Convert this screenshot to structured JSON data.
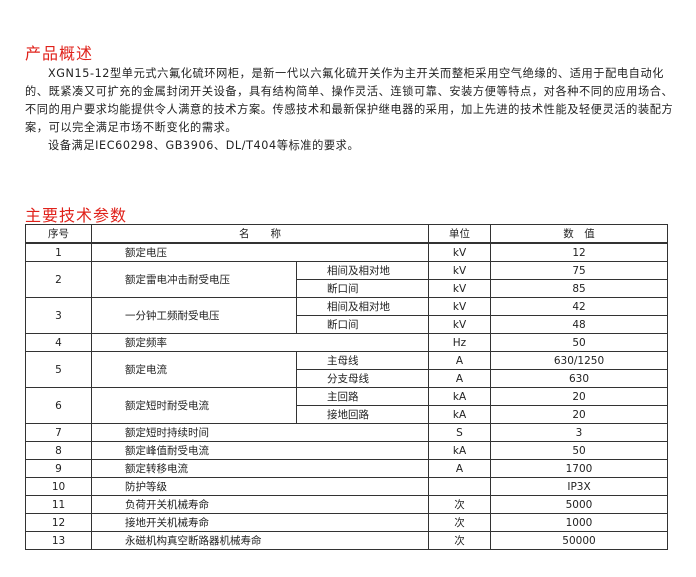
{
  "overview": {
    "title": "产品概述",
    "paragraph1": "XGN15-12型单元式六氟化硫环网柜，是新一代以六氟化硫开关作为主开关而整柜采用空气绝缘的、适用于配电自动化的、既紧凑又可扩充的金属封闭开关设备，具有结构简单、操作灵活、连锁可靠、安装方便等特点，对各种不同的应用场合、不同的用户要求均能提供令人满意的技术方案。传感技术和最新保护继电器的采用，加上先进的技术性能及轻便灵活的装配方案，可以完全满足市场不断变化的需求。",
    "paragraph2": "设备满足IEC60298、GB3906、DL/T404等标准的要求。"
  },
  "params": {
    "title": "主要技术参数",
    "headers": {
      "no": "序号",
      "name": "名　　称",
      "unit": "单位",
      "value": "数　值"
    },
    "rows": [
      {
        "no": "1",
        "name": "额定电压",
        "unit": "kV",
        "value": "12"
      },
      {
        "no": "2",
        "name": "额定雷电冲击耐受电压",
        "subs": [
          {
            "sub": "相间及相对地",
            "unit": "kV",
            "value": "75"
          },
          {
            "sub": "断口间",
            "unit": "kV",
            "value": "85"
          }
        ]
      },
      {
        "no": "3",
        "name": "一分钟工频耐受电压",
        "subs": [
          {
            "sub": "相间及相对地",
            "unit": "kV",
            "value": "42"
          },
          {
            "sub": "断口间",
            "unit": "kV",
            "value": "48"
          }
        ]
      },
      {
        "no": "4",
        "name": "额定频率",
        "unit": "Hz",
        "value": "50"
      },
      {
        "no": "5",
        "name": "额定电流",
        "subs": [
          {
            "sub": "主母线",
            "unit": "A",
            "value": "630/1250"
          },
          {
            "sub": "分支母线",
            "unit": "A",
            "value": "630"
          }
        ]
      },
      {
        "no": "6",
        "name": "额定短时耐受电流",
        "subs": [
          {
            "sub": "主回路",
            "unit": "kA",
            "value": "20"
          },
          {
            "sub": "接地回路",
            "unit": "kA",
            "value": "20"
          }
        ]
      },
      {
        "no": "7",
        "name": "额定短时持续时间",
        "unit": "S",
        "value": "3"
      },
      {
        "no": "8",
        "name": "额定峰值耐受电流",
        "unit": "kA",
        "value": "50"
      },
      {
        "no": "9",
        "name": "额定转移电流",
        "unit": "A",
        "value": "1700"
      },
      {
        "no": "10",
        "name": "防护等级",
        "unit": "",
        "value": "IP3X"
      },
      {
        "no": "11",
        "name": "负荷开关机械寿命",
        "unit": "次",
        "value": "5000"
      },
      {
        "no": "12",
        "name": "接地开关机械寿命",
        "unit": "次",
        "value": "1000"
      },
      {
        "no": "13",
        "name": "永磁机构真空断路器机械寿命",
        "unit": "次",
        "value": "50000"
      }
    ]
  }
}
